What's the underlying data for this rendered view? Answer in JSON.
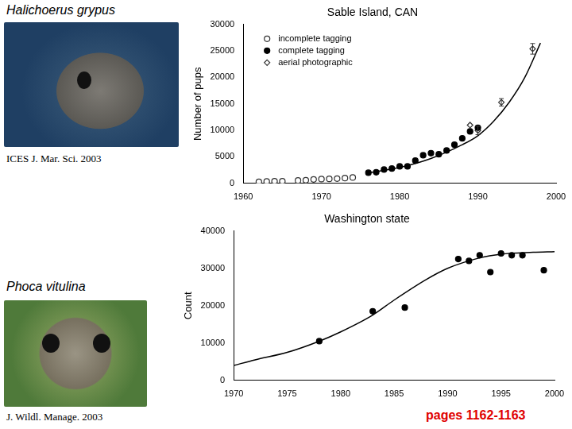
{
  "page_texts": {
    "top_species": "Halichoerus grypus",
    "top_citation": "ICES J. Mar. Sci. 2003",
    "bottom_species": "Phoca vitulina",
    "bottom_citation": "J. Wildl. Manage. 2003",
    "pages": "pages 1162-1163"
  },
  "chart_data": [
    {
      "type": "scatter",
      "title": "Sable Island, CAN",
      "y_label": "Number of pups",
      "xlim": [
        1960,
        2000
      ],
      "xticks": [
        1960,
        1970,
        1980,
        1990,
        2000
      ],
      "ylim": [
        0,
        30000
      ],
      "yticks": [
        0,
        5000,
        10000,
        15000,
        20000,
        25000,
        30000
      ],
      "grid": false,
      "legend": "upper left",
      "series": [
        {
          "name": "incomplete tagging",
          "marker": "circle-open",
          "color": "#333333",
          "x": [
            1962,
            1963,
            1964,
            1965,
            1967,
            1968,
            1969,
            1970,
            1971,
            1972,
            1973,
            1974
          ],
          "values": [
            300,
            350,
            400,
            400,
            550,
            600,
            750,
            800,
            850,
            900,
            1000,
            1100
          ]
        },
        {
          "name": "complete tagging",
          "marker": "circle",
          "color": "#000000",
          "x": [
            1976,
            1977,
            1978,
            1979,
            1980,
            1981,
            1982,
            1983,
            1984,
            1985,
            1986,
            1987,
            1988,
            1989,
            1990
          ],
          "values": [
            2000,
            2100,
            2600,
            2800,
            3200,
            3200,
            4300,
            5300,
            5700,
            5500,
            6200,
            7300,
            8500,
            9800,
            10500
          ]
        },
        {
          "name": "aerial photographic",
          "marker": "diamond-open",
          "color": "#333333",
          "x": [
            1989,
            1990,
            1993,
            1997
          ],
          "values": [
            11000,
            10000,
            15300,
            25400
          ],
          "errors": [
            0,
            800,
            700,
            1000
          ]
        },
        {
          "type": "line",
          "line_style": "solid",
          "color": "#000000",
          "x": [
            1976,
            1980,
            1984,
            1988,
            1990,
            1992,
            1994,
            1996,
            1998
          ],
          "values": [
            2000,
            3000,
            4700,
            7300,
            9000,
            11700,
            15300,
            20000,
            26500
          ]
        }
      ]
    },
    {
      "type": "scatter",
      "title": "Washington state",
      "y_label": "Count",
      "xlim": [
        1970,
        2000
      ],
      "xticks": [
        1970,
        1975,
        1980,
        1985,
        1990,
        1995,
        2000
      ],
      "ylim": [
        0,
        40000
      ],
      "yticks": [
        0,
        10000,
        20000,
        30000,
        40000
      ],
      "grid": false,
      "series": [
        {
          "name": "",
          "marker": "circle",
          "color": "#000000",
          "x": [
            1978,
            1983,
            1986,
            1991,
            1992,
            1993,
            1994,
            1995,
            1996,
            1997,
            1999
          ],
          "values": [
            10500,
            18500,
            19500,
            32500,
            32000,
            33500,
            29000,
            34000,
            33500,
            33500,
            29500
          ]
        },
        {
          "type": "line",
          "line_style": "solid",
          "color": "#000000",
          "x": [
            1970,
            1972,
            1975,
            1978,
            1980,
            1983,
            1985,
            1988,
            1990,
            1993,
            1995,
            1998,
            2000
          ],
          "values": [
            4000,
            5500,
            7500,
            10500,
            13000,
            17500,
            21500,
            27000,
            30000,
            32800,
            33800,
            34300,
            34500
          ]
        }
      ]
    }
  ]
}
